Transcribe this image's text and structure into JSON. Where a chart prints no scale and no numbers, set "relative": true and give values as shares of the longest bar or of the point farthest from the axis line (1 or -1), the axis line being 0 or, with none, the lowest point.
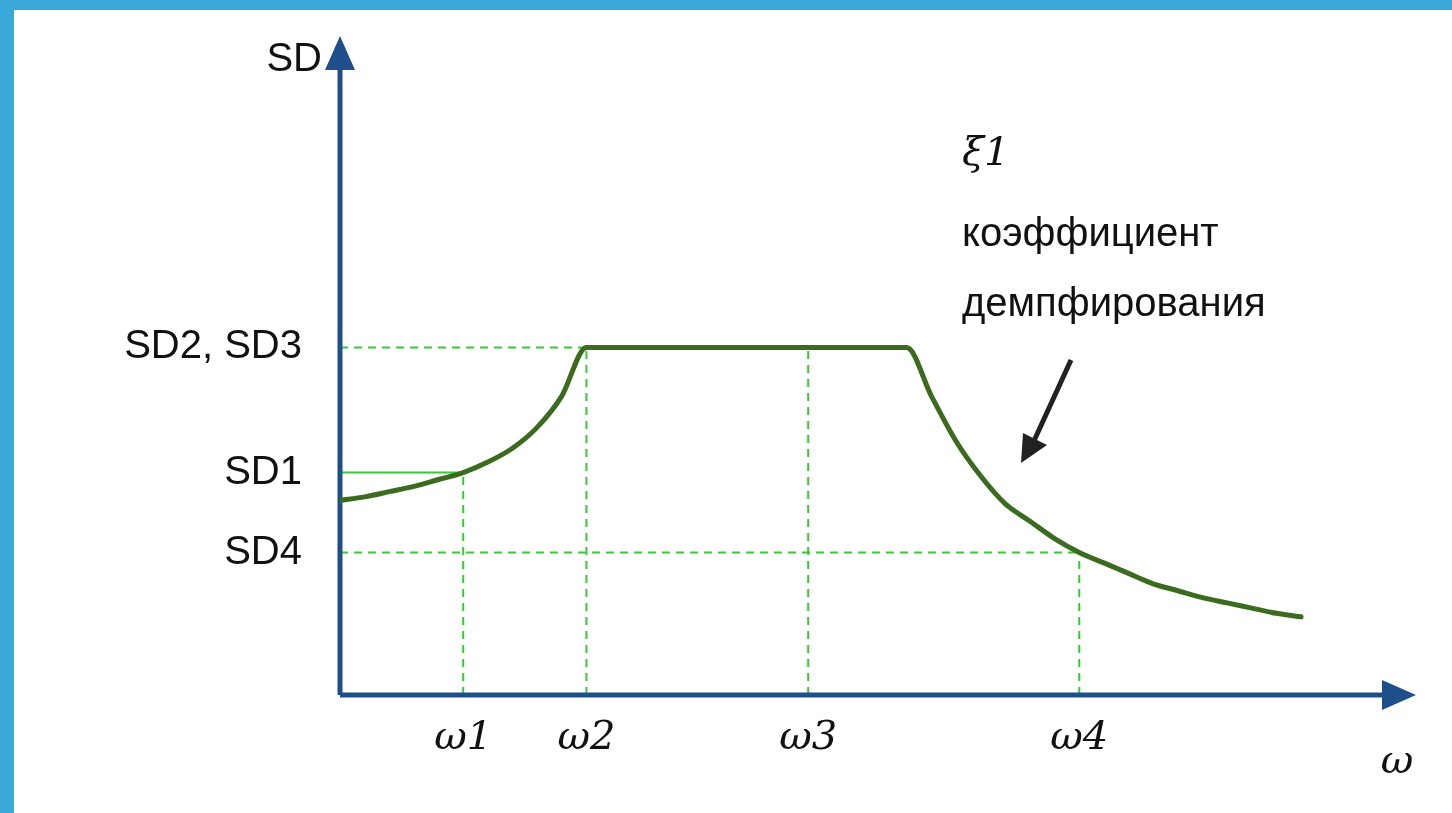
{
  "chart_data": {
    "type": "line",
    "relative": true,
    "xlabel": "ω",
    "categories": [
      null,
      null,
      null,
      null,
      null,
      "ω1",
      null,
      null,
      null,
      null,
      "ω2",
      null,
      null,
      null,
      null,
      null,
      null,
      null,
      null,
      "ω3",
      null,
      null,
      null,
      null,
      null,
      null,
      null,
      null,
      null,
      null,
      "ω4",
      null,
      null,
      null,
      null,
      null,
      null,
      null,
      null,
      null
    ],
    "series": [
      {
        "color": "#3a6b1e",
        "values": [
          0.56,
          0.57,
          0.585,
          0.6,
          0.62,
          0.64,
          0.67,
          0.71,
          0.77,
          0.86,
          1.0,
          1.0,
          1.0,
          1.0,
          1.0,
          1.0,
          1.0,
          1.0,
          1.0,
          1.0,
          1.0,
          1.0,
          1.0,
          1.0,
          0.86,
          0.73,
          0.63,
          0.55,
          0.5,
          0.45,
          0.41,
          0.38,
          0.35,
          0.32,
          0.3,
          0.28,
          0.265,
          0.25,
          0.235,
          0.225
        ]
      }
    ],
    "ref_lines": [
      {
        "axis": "y",
        "value": 1.0,
        "label": "SD2, SD3",
        "color": "#33cc33",
        "line_style": "dashed"
      },
      {
        "axis": "y",
        "value": 0.64,
        "label": "SD1",
        "color": "#33cc33",
        "line_style": "solid"
      },
      {
        "axis": "y",
        "value": 0.41,
        "label": "SD4",
        "color": "#33cc33",
        "line_style": "dashed"
      },
      {
        "axis": "x",
        "value": "ω1",
        "color": "#33cc33",
        "line_style": "dashed"
      },
      {
        "axis": "x",
        "value": "ω2",
        "color": "#33cc33",
        "line_style": "dashed"
      },
      {
        "axis": "x",
        "value": "ω3",
        "color": "#33cc33",
        "line_style": "dashed"
      },
      {
        "axis": "x",
        "value": "ω4",
        "color": "#33cc33",
        "line_style": "dashed"
      }
    ],
    "annotations": [
      "SD",
      "ξ1",
      "коэффициент демпфирования"
    ],
    "grid": false,
    "legend": false,
    "marker": "none",
    "line_style": "solid"
  }
}
